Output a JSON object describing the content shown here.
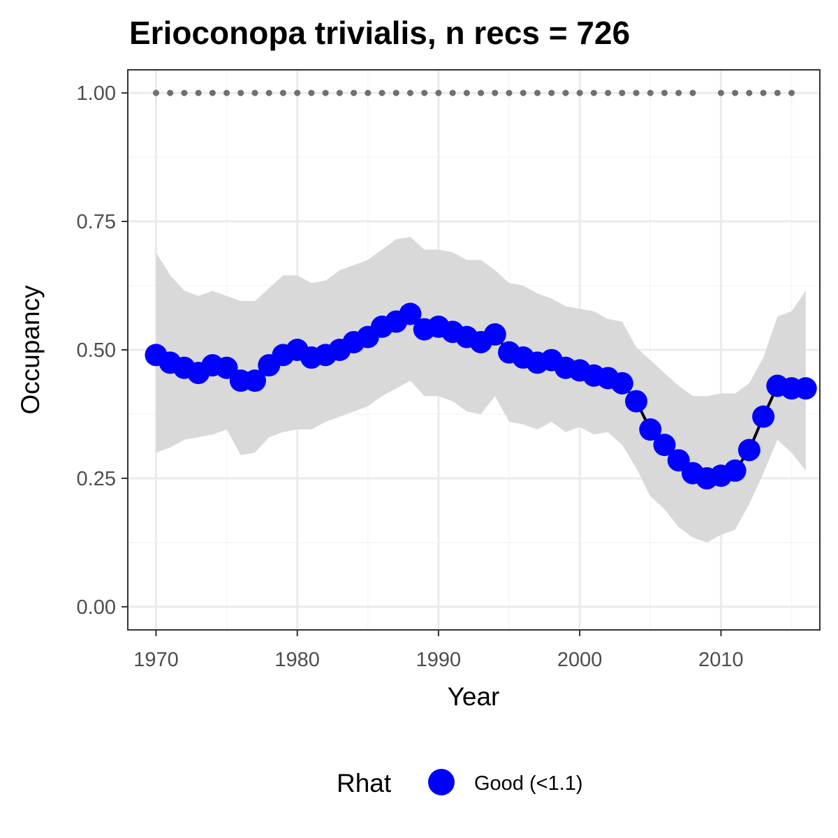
{
  "chart_data": {
    "type": "line",
    "title": "Erioconopa trivialis, n recs = 726",
    "xlabel": "Year",
    "ylabel": "Occupancy",
    "xlim": [
      1968,
      2017
    ],
    "ylim": [
      -0.045,
      1.045
    ],
    "x_ticks": [
      1970,
      1980,
      1990,
      2000,
      2010
    ],
    "x_tick_labels": [
      "1970",
      "1980",
      "1990",
      "2000",
      "2010"
    ],
    "y_ticks": [
      0,
      0.25,
      0.5,
      0.75,
      1
    ],
    "y_tick_labels": [
      "0.00",
      "0.25",
      "0.50",
      "0.75",
      "1.00"
    ],
    "grid": true,
    "legend": {
      "title": "Rhat",
      "position": "bottom",
      "entries": [
        {
          "label": "Good (<1.1)",
          "color": "#0000ff"
        }
      ]
    },
    "colors": {
      "points": "#0000ff",
      "line": "#000000",
      "ribbon": "#d9d9d9",
      "records": "#707070",
      "panel_border": "#333333",
      "grid_major": "#ebebeb",
      "grid_minor": "#f5f5f5"
    },
    "x": [
      1970,
      1971,
      1972,
      1973,
      1974,
      1975,
      1976,
      1977,
      1978,
      1979,
      1980,
      1981,
      1982,
      1983,
      1984,
      1985,
      1986,
      1987,
      1988,
      1989,
      1990,
      1991,
      1992,
      1993,
      1994,
      1995,
      1996,
      1997,
      1998,
      1999,
      2000,
      2001,
      2002,
      2003,
      2004,
      2005,
      2006,
      2007,
      2008,
      2009,
      2010,
      2011,
      2012,
      2013,
      2014,
      2015,
      2016
    ],
    "series": [
      {
        "values": [
          0.49,
          0.475,
          0.465,
          0.455,
          0.47,
          0.465,
          0.44,
          0.44,
          0.47,
          0.49,
          0.5,
          0.485,
          0.49,
          0.5,
          0.515,
          0.525,
          0.545,
          0.555,
          0.57,
          0.54,
          0.545,
          0.535,
          0.525,
          0.515,
          0.53,
          0.495,
          0.485,
          0.475,
          0.48,
          0.465,
          0.46,
          0.45,
          0.445,
          0.435,
          0.4,
          0.345,
          0.315,
          0.285,
          0.26,
          0.25,
          0.255,
          0.265,
          0.305,
          0.37,
          0.43,
          0.425,
          0.425
        ],
        "lower": [
          0.3,
          0.31,
          0.325,
          0.33,
          0.335,
          0.345,
          0.295,
          0.3,
          0.33,
          0.34,
          0.345,
          0.345,
          0.36,
          0.37,
          0.38,
          0.39,
          0.41,
          0.425,
          0.44,
          0.41,
          0.41,
          0.4,
          0.38,
          0.375,
          0.41,
          0.36,
          0.355,
          0.345,
          0.36,
          0.34,
          0.35,
          0.335,
          0.34,
          0.315,
          0.27,
          0.215,
          0.19,
          0.155,
          0.135,
          0.125,
          0.14,
          0.15,
          0.2,
          0.26,
          0.325,
          0.3,
          0.265
        ],
        "upper": [
          0.69,
          0.645,
          0.615,
          0.605,
          0.615,
          0.605,
          0.595,
          0.595,
          0.62,
          0.645,
          0.645,
          0.63,
          0.635,
          0.655,
          0.665,
          0.675,
          0.695,
          0.715,
          0.72,
          0.695,
          0.695,
          0.69,
          0.675,
          0.675,
          0.655,
          0.63,
          0.625,
          0.61,
          0.6,
          0.585,
          0.58,
          0.575,
          0.56,
          0.555,
          0.505,
          0.48,
          0.455,
          0.43,
          0.41,
          0.41,
          0.415,
          0.415,
          0.435,
          0.485,
          0.565,
          0.575,
          0.615
        ]
      }
    ],
    "record_years": [
      1970,
      1971,
      1972,
      1973,
      1974,
      1975,
      1976,
      1977,
      1978,
      1979,
      1980,
      1981,
      1982,
      1983,
      1984,
      1985,
      1986,
      1987,
      1988,
      1989,
      1990,
      1991,
      1992,
      1993,
      1994,
      1995,
      1996,
      1997,
      1998,
      1999,
      2000,
      2001,
      2002,
      2003,
      2004,
      2005,
      2006,
      2007,
      2008,
      2010,
      2011,
      2012,
      2013,
      2014,
      2015
    ],
    "record_value": 1
  }
}
